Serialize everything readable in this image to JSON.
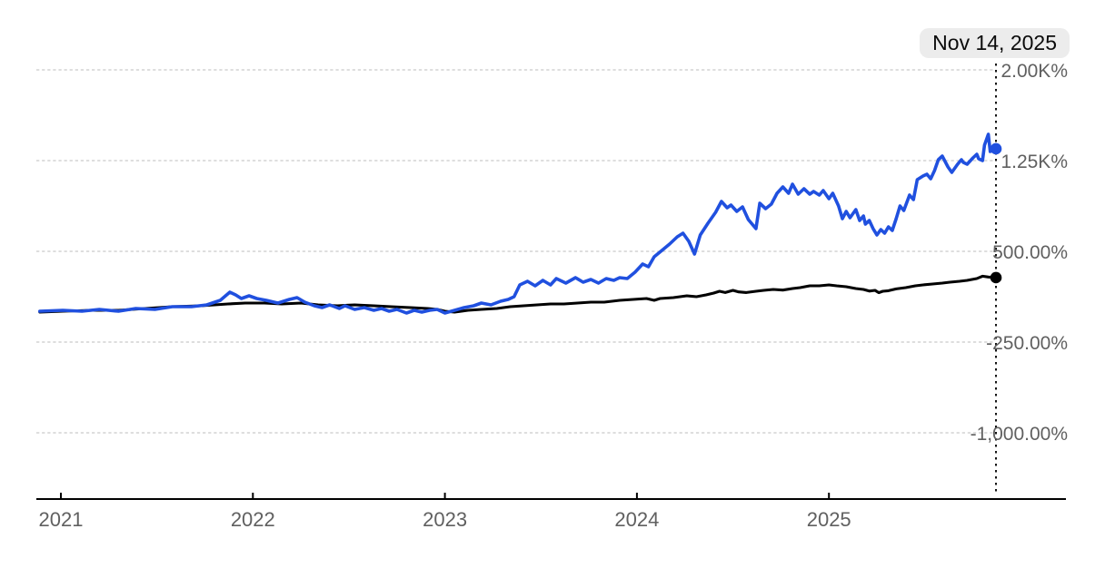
{
  "chart": {
    "tooltip_date": "Nov 14, 2025"
  },
  "colors": {
    "series_blue": "#2050df",
    "series_black": "#000000",
    "gridline": "#cbcbcb",
    "axis": "#000000",
    "axis_label": "#606060",
    "cursor_line": "#111111",
    "tooltip_bg": "#ececec",
    "tooltip_text": "#0b0b0b",
    "background": "#ffffff"
  },
  "chart_data": {
    "type": "line",
    "title": "",
    "legend": "none",
    "grid": "dashed-horizontal",
    "unit": "%",
    "x_axis": {
      "tick_years": [
        2021,
        2022,
        2023,
        2024,
        2025
      ],
      "tick_labels": [
        "2021",
        "2022",
        "2023",
        "2024",
        "2025"
      ],
      "range_years": [
        2020.87,
        2026.23
      ]
    },
    "y_axis": {
      "ticks": [
        {
          "value": 2000,
          "label": "2.00K%"
        },
        {
          "value": 1250,
          "label": "1.25K%"
        },
        {
          "value": 500,
          "label": "500.00%"
        },
        {
          "value": -250,
          "label": "-250.00%"
        },
        {
          "value": -1000,
          "label": "-1,000.00%"
        }
      ]
    },
    "cursor": {
      "label": "Nov 14, 2025",
      "x_year": 2025.87
    },
    "series": [
      {
        "name": "black-series",
        "color": "#000000",
        "end_value_pct": 283,
        "points": [
          [
            2020.89,
            -2
          ],
          [
            2021.01,
            5
          ],
          [
            2021.16,
            13
          ],
          [
            2021.3,
            13
          ],
          [
            2021.44,
            28
          ],
          [
            2021.58,
            43
          ],
          [
            2021.73,
            50
          ],
          [
            2021.87,
            65
          ],
          [
            2021.96,
            73
          ],
          [
            2022.06,
            73
          ],
          [
            2022.15,
            65
          ],
          [
            2022.25,
            73
          ],
          [
            2022.34,
            58
          ],
          [
            2022.44,
            50
          ],
          [
            2022.53,
            58
          ],
          [
            2022.63,
            50
          ],
          [
            2022.72,
            43
          ],
          [
            2022.82,
            35
          ],
          [
            2022.91,
            28
          ],
          [
            2022.96,
            20
          ],
          [
            2023.0,
            5
          ],
          [
            2023.05,
            -2
          ],
          [
            2023.12,
            13
          ],
          [
            2023.19,
            20
          ],
          [
            2023.27,
            28
          ],
          [
            2023.34,
            43
          ],
          [
            2023.41,
            50
          ],
          [
            2023.48,
            58
          ],
          [
            2023.55,
            65
          ],
          [
            2023.62,
            65
          ],
          [
            2023.69,
            73
          ],
          [
            2023.76,
            80
          ],
          [
            2023.83,
            80
          ],
          [
            2023.91,
            95
          ],
          [
            2023.98,
            103
          ],
          [
            2024.05,
            110
          ],
          [
            2024.09,
            95
          ],
          [
            2024.12,
            110
          ],
          [
            2024.19,
            118
          ],
          [
            2024.26,
            133
          ],
          [
            2024.31,
            125
          ],
          [
            2024.36,
            140
          ],
          [
            2024.4,
            155
          ],
          [
            2024.43,
            170
          ],
          [
            2024.46,
            160
          ],
          [
            2024.5,
            178
          ],
          [
            2024.53,
            165
          ],
          [
            2024.57,
            160
          ],
          [
            2024.62,
            170
          ],
          [
            2024.66,
            178
          ],
          [
            2024.71,
            185
          ],
          [
            2024.76,
            180
          ],
          [
            2024.81,
            193
          ],
          [
            2024.85,
            200
          ],
          [
            2024.9,
            215
          ],
          [
            2024.95,
            215
          ],
          [
            2025.0,
            223
          ],
          [
            2025.04,
            215
          ],
          [
            2025.09,
            208
          ],
          [
            2025.14,
            193
          ],
          [
            2025.18,
            185
          ],
          [
            2025.21,
            172
          ],
          [
            2025.24,
            178
          ],
          [
            2025.26,
            158
          ],
          [
            2025.28,
            170
          ],
          [
            2025.31,
            175
          ],
          [
            2025.35,
            190
          ],
          [
            2025.4,
            200
          ],
          [
            2025.45,
            215
          ],
          [
            2025.49,
            223
          ],
          [
            2025.54,
            230
          ],
          [
            2025.59,
            238
          ],
          [
            2025.63,
            245
          ],
          [
            2025.68,
            253
          ],
          [
            2025.72,
            260
          ],
          [
            2025.77,
            275
          ],
          [
            2025.8,
            295
          ],
          [
            2025.83,
            288
          ],
          [
            2025.87,
            283
          ]
        ]
      },
      {
        "name": "blue-series",
        "color": "#2050df",
        "end_value_pct": 1348,
        "points": [
          [
            2020.89,
            5
          ],
          [
            2021.01,
            13
          ],
          [
            2021.11,
            5
          ],
          [
            2021.2,
            20
          ],
          [
            2021.3,
            5
          ],
          [
            2021.39,
            28
          ],
          [
            2021.49,
            20
          ],
          [
            2021.58,
            43
          ],
          [
            2021.68,
            43
          ],
          [
            2021.76,
            58
          ],
          [
            2021.83,
            95
          ],
          [
            2021.88,
            163
          ],
          [
            2021.91,
            140
          ],
          [
            2021.94,
            110
          ],
          [
            2021.98,
            133
          ],
          [
            2022.02,
            110
          ],
          [
            2022.07,
            95
          ],
          [
            2022.13,
            73
          ],
          [
            2022.19,
            103
          ],
          [
            2022.23,
            118
          ],
          [
            2022.27,
            80
          ],
          [
            2022.32,
            50
          ],
          [
            2022.36,
            35
          ],
          [
            2022.4,
            58
          ],
          [
            2022.45,
            28
          ],
          [
            2022.48,
            50
          ],
          [
            2022.53,
            20
          ],
          [
            2022.58,
            35
          ],
          [
            2022.63,
            13
          ],
          [
            2022.67,
            28
          ],
          [
            2022.71,
            5
          ],
          [
            2022.75,
            20
          ],
          [
            2022.8,
            -10
          ],
          [
            2022.84,
            13
          ],
          [
            2022.88,
            -2
          ],
          [
            2022.92,
            13
          ],
          [
            2022.96,
            20
          ],
          [
            2023.0,
            -10
          ],
          [
            2023.05,
            13
          ],
          [
            2023.1,
            35
          ],
          [
            2023.15,
            50
          ],
          [
            2023.19,
            73
          ],
          [
            2023.24,
            58
          ],
          [
            2023.29,
            88
          ],
          [
            2023.33,
            103
          ],
          [
            2023.36,
            125
          ],
          [
            2023.39,
            223
          ],
          [
            2023.43,
            253
          ],
          [
            2023.47,
            215
          ],
          [
            2023.51,
            260
          ],
          [
            2023.55,
            223
          ],
          [
            2023.58,
            275
          ],
          [
            2023.63,
            238
          ],
          [
            2023.68,
            283
          ],
          [
            2023.72,
            245
          ],
          [
            2023.76,
            268
          ],
          [
            2023.8,
            238
          ],
          [
            2023.84,
            275
          ],
          [
            2023.88,
            260
          ],
          [
            2023.91,
            283
          ],
          [
            2023.95,
            275
          ],
          [
            2023.99,
            328
          ],
          [
            2024.03,
            395
          ],
          [
            2024.06,
            373
          ],
          [
            2024.09,
            455
          ],
          [
            2024.13,
            508
          ],
          [
            2024.17,
            560
          ],
          [
            2024.21,
            620
          ],
          [
            2024.24,
            650
          ],
          [
            2024.27,
            583
          ],
          [
            2024.3,
            478
          ],
          [
            2024.33,
            635
          ],
          [
            2024.37,
            733
          ],
          [
            2024.41,
            823
          ],
          [
            2024.44,
            913
          ],
          [
            2024.47,
            860
          ],
          [
            2024.49,
            883
          ],
          [
            2024.52,
            830
          ],
          [
            2024.55,
            868
          ],
          [
            2024.58,
            763
          ],
          [
            2024.62,
            688
          ],
          [
            2024.64,
            898
          ],
          [
            2024.67,
            853
          ],
          [
            2024.7,
            890
          ],
          [
            2024.73,
            980
          ],
          [
            2024.76,
            1033
          ],
          [
            2024.79,
            980
          ],
          [
            2024.81,
            1055
          ],
          [
            2024.84,
            973
          ],
          [
            2024.87,
            1018
          ],
          [
            2024.9,
            973
          ],
          [
            2024.92,
            995
          ],
          [
            2024.95,
            965
          ],
          [
            2024.97,
            1003
          ],
          [
            2025.0,
            935
          ],
          [
            2025.02,
            980
          ],
          [
            2025.05,
            875
          ],
          [
            2025.07,
            770
          ],
          [
            2025.09,
            830
          ],
          [
            2025.11,
            778
          ],
          [
            2025.14,
            845
          ],
          [
            2025.16,
            755
          ],
          [
            2025.18,
            793
          ],
          [
            2025.19,
            725
          ],
          [
            2025.21,
            755
          ],
          [
            2025.23,
            688
          ],
          [
            2025.25,
            635
          ],
          [
            2025.27,
            680
          ],
          [
            2025.29,
            650
          ],
          [
            2025.31,
            703
          ],
          [
            2025.33,
            673
          ],
          [
            2025.35,
            770
          ],
          [
            2025.37,
            875
          ],
          [
            2025.39,
            838
          ],
          [
            2025.42,
            965
          ],
          [
            2025.44,
            928
          ],
          [
            2025.46,
            1093
          ],
          [
            2025.49,
            1123
          ],
          [
            2025.51,
            1138
          ],
          [
            2025.53,
            1100
          ],
          [
            2025.55,
            1168
          ],
          [
            2025.57,
            1258
          ],
          [
            2025.59,
            1288
          ],
          [
            2025.6,
            1258
          ],
          [
            2025.62,
            1198
          ],
          [
            2025.64,
            1153
          ],
          [
            2025.67,
            1220
          ],
          [
            2025.69,
            1258
          ],
          [
            2025.7,
            1235
          ],
          [
            2025.72,
            1220
          ],
          [
            2025.75,
            1273
          ],
          [
            2025.77,
            1303
          ],
          [
            2025.78,
            1265
          ],
          [
            2025.8,
            1250
          ],
          [
            2025.81,
            1378
          ],
          [
            2025.83,
            1468
          ],
          [
            2025.84,
            1325
          ],
          [
            2025.87,
            1348
          ]
        ]
      }
    ]
  }
}
